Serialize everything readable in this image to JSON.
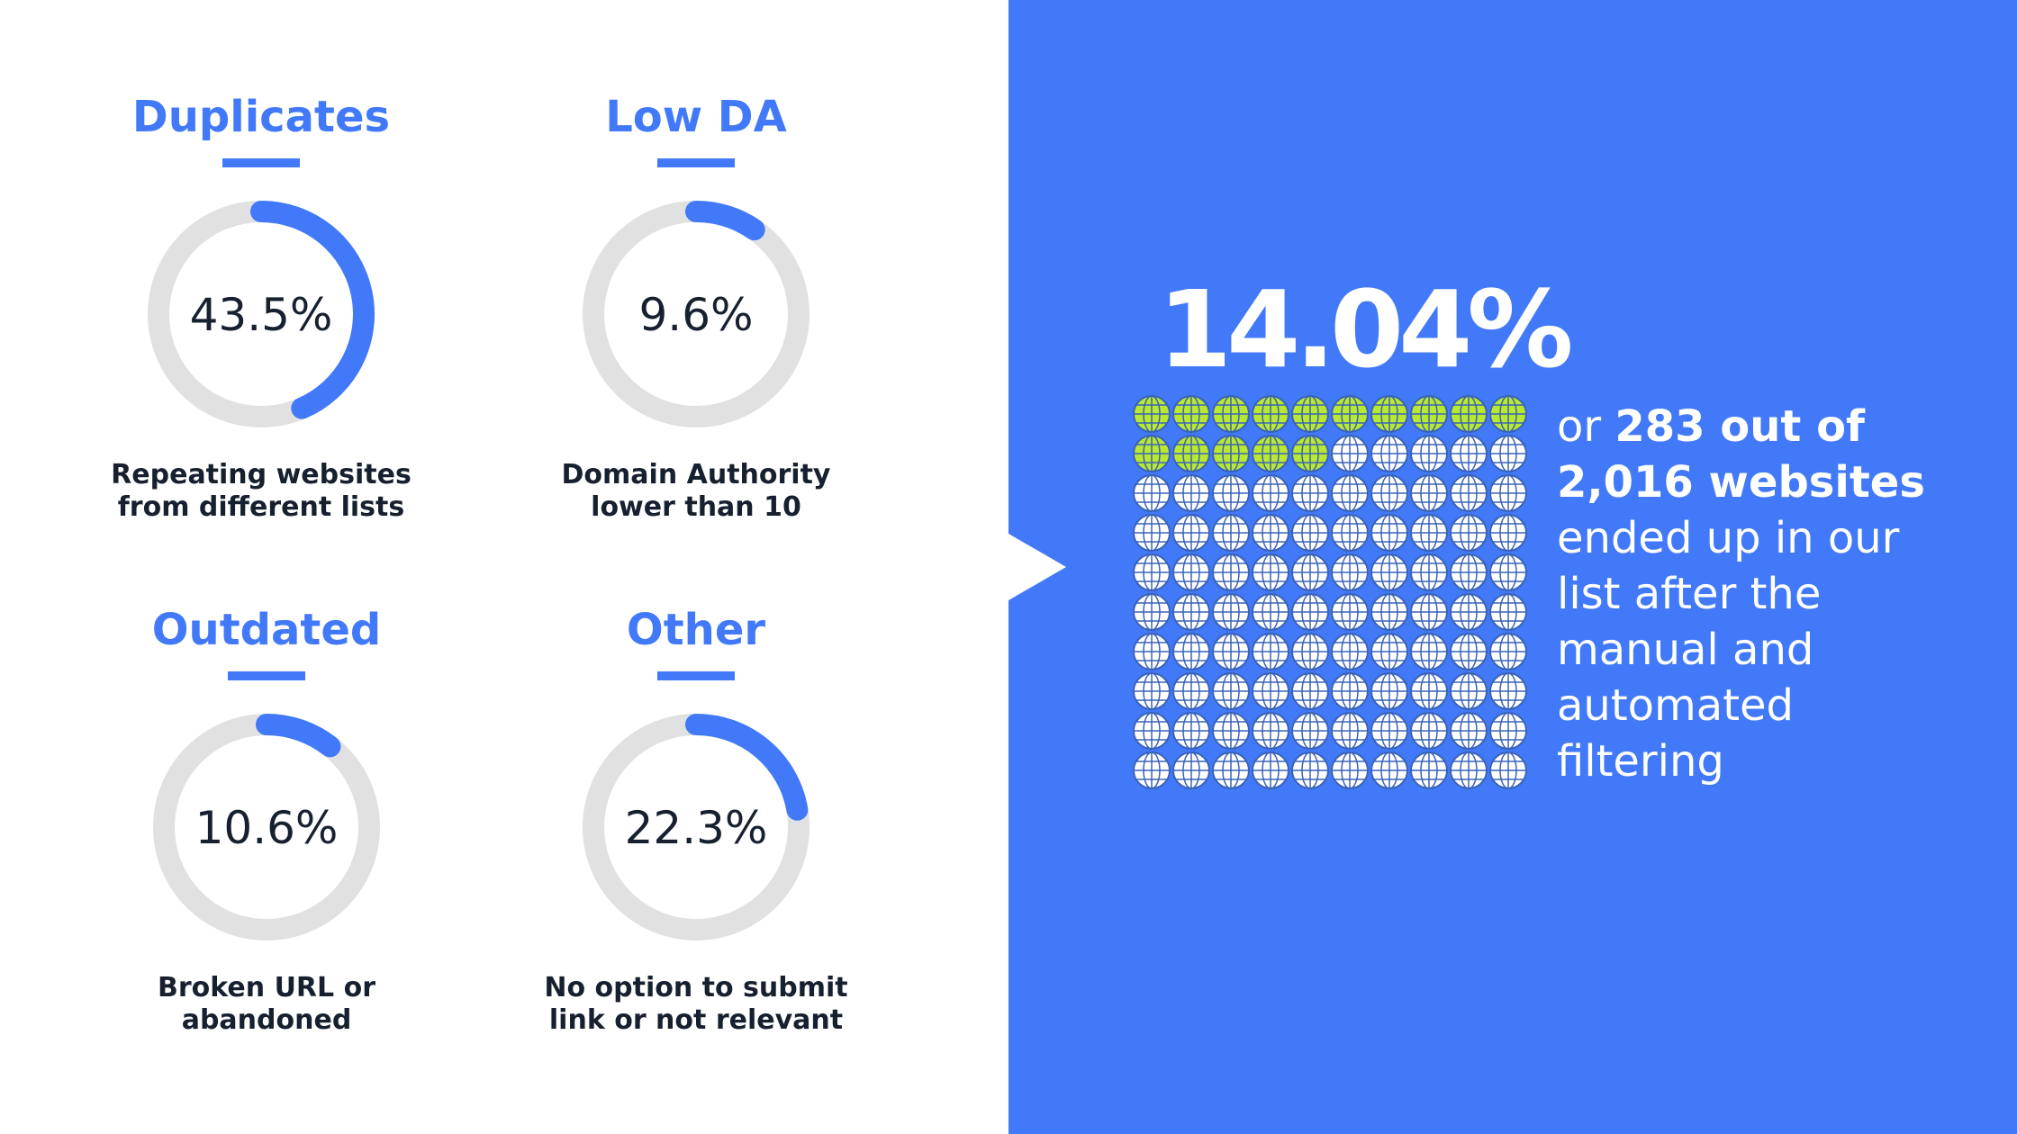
{
  "chart_data": [
    {
      "type": "donut",
      "title": "Duplicates",
      "value": 43.5,
      "value_label": "43.5%",
      "caption": [
        "Repeating websites",
        "from different lists"
      ],
      "color": "#4179f9",
      "track_color": "#e1e1e1"
    },
    {
      "type": "donut",
      "title": "Low DA",
      "value": 9.6,
      "value_label": "9.6%",
      "caption": [
        "Domain Authority",
        "lower than 10"
      ],
      "color": "#4179f9",
      "track_color": "#e1e1e1"
    },
    {
      "type": "donut",
      "title": "Outdated",
      "value": 10.6,
      "value_label": "10.6%",
      "caption": [
        "Broken URL or",
        "abandoned"
      ],
      "color": "#4179f9",
      "track_color": "#e1e1e1"
    },
    {
      "type": "donut",
      "title": "Other",
      "value": 22.3,
      "value_label": "22.3%",
      "caption": [
        "No option to submit",
        "link or not relevant"
      ],
      "color": "#4179f9",
      "track_color": "#e1e1e1"
    },
    {
      "type": "waffle",
      "value": 14.04,
      "value_label": "14.04%",
      "color": "#b9e830",
      "empty_color": "#ffffff",
      "text_lines": [
        [
          {
            "text": "or ",
            "bold": false
          },
          {
            "text": "283 out of",
            "bold": true
          }
        ],
        [
          {
            "text": "2,016 websites",
            "bold": true
          }
        ],
        [
          {
            "text": "ended up in our",
            "bold": false
          }
        ],
        [
          {
            "text": "list after the",
            "bold": false
          }
        ],
        [
          {
            "text": "manual and",
            "bold": false
          }
        ],
        [
          {
            "text": "automated",
            "bold": false
          }
        ],
        [
          {
            "text": "filtering",
            "bold": false
          }
        ]
      ]
    }
  ]
}
